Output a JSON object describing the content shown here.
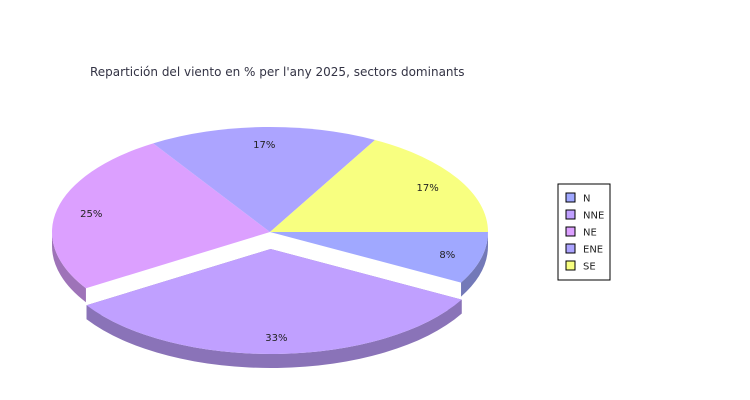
{
  "chart_data": {
    "type": "pie",
    "title": "Repartición del viento en % per l'any 2025, sectors dominants",
    "categories": [
      "N",
      "NNE",
      "NE",
      "ENE",
      "SE"
    ],
    "values": [
      8,
      33,
      25,
      17,
      17
    ],
    "value_labels": [
      "8%",
      "33%",
      "25%",
      "17%",
      "17%"
    ],
    "colors": [
      "#a0a8ff",
      "#c0a0ff",
      "#dca0ff",
      "#aca4ff",
      "#f8ff80"
    ],
    "exploded": "NNE",
    "three_d": true,
    "legend_position": "right"
  },
  "legend": {
    "items": [
      {
        "label": "N",
        "color": "#a0a8ff"
      },
      {
        "label": "NNE",
        "color": "#c0a0ff"
      },
      {
        "label": "NE",
        "color": "#dca0ff"
      },
      {
        "label": "ENE",
        "color": "#aca4ff"
      },
      {
        "label": "SE",
        "color": "#f8ff80"
      }
    ]
  }
}
